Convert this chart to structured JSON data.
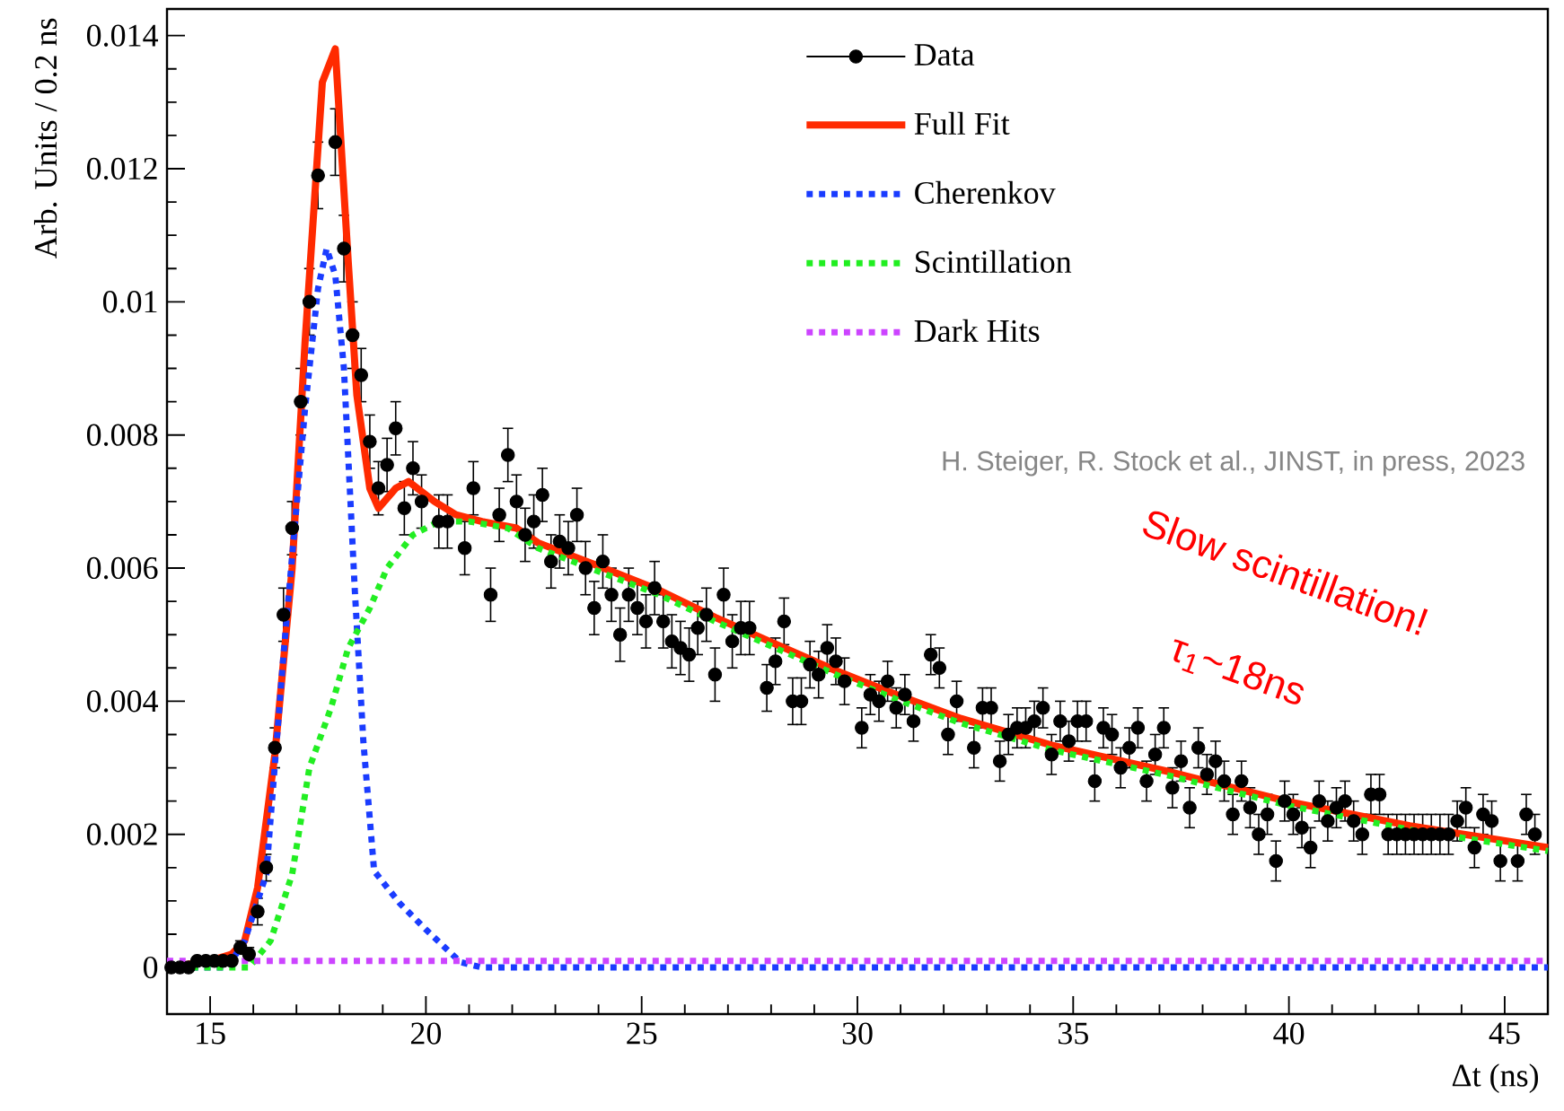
{
  "chart_data": {
    "type": "line",
    "xlabel": "Δt (ns)",
    "ylabel": "Arb. Units / 0.2 ns",
    "xlim": [
      14,
      46
    ],
    "ylim": [
      -0.0007,
      0.0144
    ],
    "xticks": [
      15,
      20,
      25,
      30,
      35,
      40,
      45
    ],
    "yticks": [
      0,
      0.002,
      0.004,
      0.006,
      0.008,
      0.01,
      0.012,
      0.014
    ],
    "legend": "top right",
    "annotations": [
      "H. Steiger, R. Stock et al., JINST, in press, 2023",
      "Slow scintillation!",
      "τ$_{1}$~18ns"
    ],
    "series": [
      {
        "name": "Data",
        "type": "scatter",
        "marker": "circle",
        "color": "#000000",
        "x": [
          14.1,
          14.3,
          14.5,
          14.7,
          14.9,
          15.1,
          15.3,
          15.5,
          15.7,
          15.9,
          16.1,
          16.3,
          16.5,
          16.7,
          16.9,
          17.1,
          17.3,
          17.5,
          17.9,
          18.1,
          18.3,
          18.5,
          18.7,
          18.9,
          19.1,
          19.3,
          19.5,
          19.7,
          19.9,
          20.3,
          20.5,
          20.9,
          21.1,
          21.5,
          21.7,
          21.9,
          22.1,
          22.3,
          22.5,
          22.7,
          22.9,
          23.1,
          23.3,
          23.5,
          23.7,
          23.9,
          24.1,
          24.3,
          24.5,
          24.7,
          24.9,
          25.1,
          25.3,
          25.5,
          25.7,
          25.9,
          26.1,
          26.3,
          26.5,
          26.7,
          26.9,
          27.1,
          27.3,
          27.5,
          27.9,
          28.1,
          28.3,
          28.5,
          28.7,
          28.9,
          29.1,
          29.3,
          29.5,
          29.7,
          30.1,
          30.3,
          30.5,
          30.7,
          30.9,
          31.1,
          31.3,
          31.7,
          31.9,
          32.1,
          32.3,
          32.7,
          32.9,
          33.1,
          33.3,
          33.5,
          33.7,
          33.9,
          34.1,
          34.3,
          34.5,
          34.7,
          34.9,
          35.1,
          35.3,
          35.5,
          35.7,
          35.9,
          36.1,
          36.3,
          36.5,
          36.7,
          36.9,
          37.1,
          37.3,
          37.5,
          37.7,
          37.9,
          38.1,
          38.3,
          38.5,
          38.7,
          38.9,
          39.1,
          39.3,
          39.5,
          39.7,
          39.9,
          40.1,
          40.3,
          40.5,
          40.7,
          40.9,
          41.1,
          41.3,
          41.5,
          41.7,
          41.9,
          42.1,
          42.3,
          42.5,
          42.7,
          42.9,
          43.1,
          43.3,
          43.5,
          43.7,
          43.9,
          44.1,
          44.3,
          44.5,
          44.7,
          44.9,
          45.3,
          45.5,
          45.7
        ],
        "values": [
          0,
          0,
          0,
          0.0001,
          0.0001,
          0.0001,
          0.0001,
          0.0001,
          0.0003,
          0.0002,
          0.00084,
          0.0015,
          0.0033,
          0.0053,
          0.0066,
          0.0085,
          0.01,
          0.0119,
          0.0124,
          0.0108,
          0.0095,
          0.0089,
          0.0079,
          0.0072,
          0.00755,
          0.0081,
          0.0069,
          0.0075,
          0.007,
          0.0067,
          0.0067,
          0.0063,
          0.0072,
          0.0056,
          0.0068,
          0.0077,
          0.007,
          0.0065,
          0.0067,
          0.0071,
          0.0061,
          0.0064,
          0.0063,
          0.0068,
          0.006,
          0.0054,
          0.0061,
          0.0056,
          0.005,
          0.0056,
          0.0054,
          0.0052,
          0.0057,
          0.0052,
          0.0049,
          0.0048,
          0.0047,
          0.0051,
          0.0053,
          0.0044,
          0.0056,
          0.0049,
          0.0051,
          0.0051,
          0.0042,
          0.0046,
          0.0052,
          0.004,
          0.004,
          0.00455,
          0.0044,
          0.0048,
          0.0046,
          0.0043,
          0.0036,
          0.0041,
          0.004,
          0.0043,
          0.0039,
          0.0041,
          0.0037,
          0.0047,
          0.0045,
          0.0035,
          0.004,
          0.0033,
          0.0039,
          0.0039,
          0.0031,
          0.0035,
          0.0036,
          0.0036,
          0.0037,
          0.0039,
          0.0032,
          0.0037,
          0.0034,
          0.0037,
          0.0037,
          0.0028,
          0.0036,
          0.0035,
          0.003,
          0.0033,
          0.0036,
          0.0028,
          0.0032,
          0.0036,
          0.0027,
          0.0031,
          0.0024,
          0.0033,
          0.0029,
          0.0031,
          0.0028,
          0.0023,
          0.0028,
          0.0024,
          0.002,
          0.0023,
          0.0016,
          0.0025,
          0.0023,
          0.0021,
          0.0018,
          0.0025,
          0.0022,
          0.0024,
          0.0025,
          0.0022,
          0.002,
          0.0026,
          0.0026,
          0.002,
          0.002,
          0.002,
          0.002,
          0.002,
          0.002,
          0.002,
          0.002,
          0.0022,
          0.0024,
          0.0018,
          0.0023,
          0.0022,
          0.0016,
          0.0016,
          0.0023,
          0.002
        ],
        "errors": [
          5e-05,
          5e-05,
          5e-05,
          5e-05,
          5e-05,
          5e-05,
          5e-05,
          5e-05,
          0.0001,
          0.0001,
          0.0002,
          0.0002,
          0.0003,
          0.0004,
          0.0004,
          0.0005,
          0.0005,
          0.0005,
          0.0005,
          0.0005,
          0.0005,
          0.0004,
          0.0004,
          0.0004,
          0.0004,
          0.0004,
          0.0004,
          0.0004,
          0.0004,
          0.0004,
          0.0004,
          0.0004,
          0.0004,
          0.0004,
          0.0004,
          0.0004,
          0.0004,
          0.0004,
          0.0004,
          0.0004,
          0.0004,
          0.0004,
          0.0004,
          0.0004,
          0.0004,
          0.0004,
          0.0004,
          0.0004,
          0.0004,
          0.0004,
          0.0004,
          0.0004,
          0.0004,
          0.0004,
          0.0004,
          0.0004,
          0.0004,
          0.0004,
          0.0004,
          0.0004,
          0.0004,
          0.0004,
          0.0004,
          0.0004,
          0.00035,
          0.00035,
          0.00035,
          0.00035,
          0.00035,
          0.00035,
          0.00035,
          0.00035,
          0.00035,
          0.00035,
          0.0003,
          0.0003,
          0.0003,
          0.0003,
          0.0003,
          0.0003,
          0.0003,
          0.0003,
          0.0003,
          0.0003,
          0.0003,
          0.0003,
          0.0003,
          0.0003,
          0.0003,
          0.0003,
          0.0003,
          0.0003,
          0.0003,
          0.0003,
          0.0003,
          0.0003,
          0.0003,
          0.0003,
          0.0003,
          0.0003,
          0.0003,
          0.0003,
          0.0003,
          0.0003,
          0.0003,
          0.0003,
          0.0003,
          0.0003,
          0.0003,
          0.0003,
          0.0003,
          0.0003,
          0.0003,
          0.0003,
          0.0003,
          0.0003,
          0.0003,
          0.0003,
          0.0003,
          0.0003,
          0.0003,
          0.0003,
          0.0003,
          0.0003,
          0.0003,
          0.0003,
          0.0003,
          0.0003,
          0.0003,
          0.0003,
          0.0003,
          0.0003,
          0.0003,
          0.0003,
          0.0003,
          0.0003,
          0.0003,
          0.0003,
          0.0003,
          0.0003,
          0.0003,
          0.0003,
          0.0003,
          0.0003,
          0.0003,
          0.0003,
          0.0003,
          0.0003,
          0.0003,
          0.0003
        ]
      },
      {
        "name": "Full Fit",
        "line_style": "solid",
        "color": "#ff2a00",
        "x": [
          14,
          15,
          15.5,
          15.8,
          16.1,
          16.5,
          16.9,
          17.2,
          17.6,
          17.9,
          18.2,
          18.4,
          18.7,
          18.9,
          19.3,
          19.6,
          20.2,
          20.7,
          21.3,
          22.1,
          22.6,
          24,
          25.4,
          26.7,
          28.1,
          29.5,
          30.9,
          32.4,
          34.5,
          37.3,
          40,
          42.8,
          46
        ],
        "values": [
          0,
          0.0001,
          0.0002,
          0.0004,
          0.0012,
          0.0032,
          0.006,
          0.0094,
          0.0133,
          0.0138,
          0.0106,
          0.0086,
          0.0072,
          0.0069,
          0.0072,
          0.0073,
          0.007,
          0.0068,
          0.0067,
          0.0066,
          0.00638,
          0.00603,
          0.00567,
          0.00526,
          0.00486,
          0.00446,
          0.0041,
          0.00374,
          0.00334,
          0.00293,
          0.00249,
          0.00213,
          0.0018
        ]
      },
      {
        "name": "Cherenkov",
        "line_style": "dotted",
        "color": "#1a3cff",
        "x": [
          14,
          15.4,
          15.8,
          16.3,
          16.7,
          17.2,
          17.5,
          17.7,
          17.9,
          18.1,
          18.35,
          18.55,
          18.8,
          19.4,
          20,
          20.8,
          21.3,
          46
        ],
        "values": [
          0,
          0,
          0.0004,
          0.0014,
          0.0047,
          0.0084,
          0.0102,
          0.0108,
          0.0104,
          0.009,
          0.0057,
          0.0034,
          0.00145,
          0.00096,
          0.00057,
          8e-05,
          0,
          0
        ]
      },
      {
        "name": "Scintillation",
        "line_style": "dotted",
        "color": "#22ee22",
        "x": [
          14,
          15.9,
          16.4,
          16.9,
          17.3,
          17.8,
          18.2,
          18.7,
          19.1,
          19.7,
          20.3,
          21,
          21.9,
          22.6,
          24,
          25.4,
          26.7,
          28.1,
          29.5,
          30.9,
          32.4,
          34.5,
          37.3,
          40,
          42.8,
          46
        ],
        "values": [
          0,
          0,
          0.0004,
          0.0014,
          0.003,
          0.0039,
          0.0048,
          0.0054,
          0.006,
          0.0065,
          0.0067,
          0.0067,
          0.0066,
          0.0063,
          0.00595,
          0.0056,
          0.0052,
          0.0048,
          0.0044,
          0.00403,
          0.00367,
          0.00327,
          0.00287,
          0.00243,
          0.00207,
          0.00175
        ]
      },
      {
        "name": "Dark Hits",
        "line_style": "dotted",
        "color": "#cc44ff",
        "x": [
          14,
          46
        ],
        "values": [
          0.0001,
          0.0001
        ]
      }
    ]
  }
}
